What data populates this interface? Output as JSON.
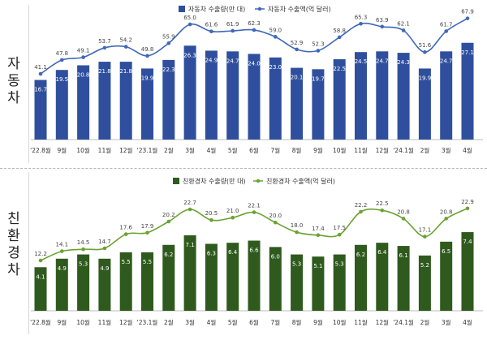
{
  "panels": [
    {
      "label_chars": [
        "자",
        "동",
        "차"
      ],
      "chart_data": {
        "type": "bar",
        "categories": [
          "'22.8월",
          "9월",
          "10월",
          "11월",
          "12월",
          "'23.1월",
          "2월",
          "3월",
          "4월",
          "5월",
          "6월",
          "7월",
          "8월",
          "9월",
          "10월",
          "11월",
          "12월",
          "'24.1월",
          "2월",
          "3월",
          "4월"
        ],
        "series": [
          {
            "name": "자동차 수출량(만 대)",
            "type": "bar",
            "color": "#2f4f9e",
            "values": [
              16.7,
              19.5,
              20.8,
              21.8,
              21.8,
              19.9,
              22.3,
              26.3,
              24.9,
              24.7,
              24.0,
              23.0,
              20.1,
              19.7,
              22.5,
              24.5,
              24.7,
              24.3,
              19.9,
              24.7,
              27.1
            ]
          },
          {
            "name": "자동차 수출액(억 달러)",
            "type": "line",
            "color": "#3f68b8",
            "values": [
              41.1,
              47.8,
              49.1,
              53.7,
              54.2,
              49.8,
              55.9,
              65.0,
              61.6,
              61.9,
              62.3,
              59.0,
              52.9,
              52.3,
              58.8,
              65.3,
              63.9,
              62.1,
              51.6,
              61.7,
              67.9
            ]
          }
        ],
        "legend_position": "top-center"
      }
    },
    {
      "label_chars": [
        "친",
        "환",
        "경",
        "차"
      ],
      "chart_data": {
        "type": "bar",
        "categories": [
          "'22.8월",
          "9월",
          "10월",
          "11월",
          "12월",
          "'23.1월",
          "2월",
          "3월",
          "4월",
          "5월",
          "6월",
          "7월",
          "8월",
          "9월",
          "10월",
          "11월",
          "12월",
          "'24.1월",
          "2월",
          "3월",
          "4월"
        ],
        "series": [
          {
            "name": "친환경차 수출량(만 대)",
            "type": "bar",
            "color": "#2f5a1d",
            "values": [
              4.1,
              4.9,
              5.3,
              4.9,
              5.5,
              5.5,
              6.2,
              7.1,
              6.3,
              6.4,
              6.6,
              6.0,
              5.3,
              5.1,
              5.3,
              6.2,
              6.4,
              6.1,
              5.2,
              6.5,
              7.4
            ]
          },
          {
            "name": "친환경차 수출액(억 달러)",
            "type": "line",
            "color": "#6aa330",
            "values": [
              12.2,
              14.1,
              14.5,
              14.7,
              17.6,
              17.9,
              20.2,
              22.7,
              20.5,
              21.0,
              22.1,
              20.0,
              18.0,
              17.4,
              17.5,
              22.2,
              22.5,
              20.8,
              17.1,
              20.8,
              22.9
            ]
          }
        ],
        "legend_position": "top-center"
      }
    }
  ]
}
